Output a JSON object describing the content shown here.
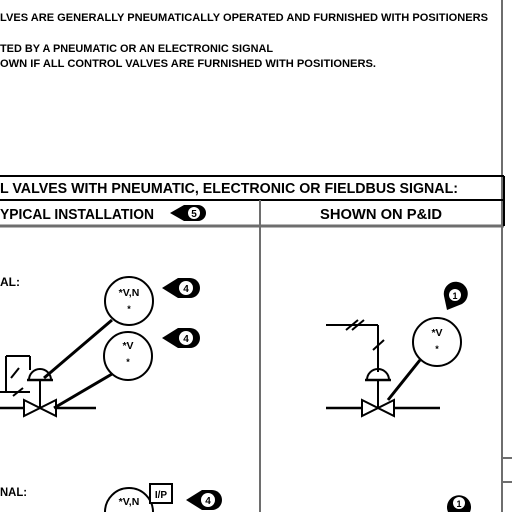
{
  "notes": {
    "line1": "LVES ARE GENERALLY PNEUMATICALLY OPERATED AND FURNISHED WITH POSITIONERS",
    "line2": "TED BY A PNEUMATIC OR AN ELECTRONIC SIGNAL",
    "line3": "OWN IF ALL CONTROL VALVES ARE FURNISHED WITH POSITIONERS."
  },
  "table": {
    "title": "L VALVES WITH PNEUMATIC, ELECTRONIC OR FIELDBUS SIGNAL:",
    "col_left": "YPICAL INSTALLATION",
    "col_left_callout": "5",
    "col_right": "SHOWN ON P&ID"
  },
  "left": {
    "row1_label": "AL:",
    "row2_label": "NAL:",
    "bubble1": "*V,N",
    "bubble1_sub": "*",
    "bubble1_callout": "4",
    "bubble2": "*V",
    "bubble2_sub": "*",
    "bubble2_callout": "4",
    "bubble3": "*V,N",
    "ip_label": "I/P",
    "bubble3_callout": "4"
  },
  "right": {
    "bubble1": "*V",
    "bubble1_sub": "*",
    "tag1": "1",
    "tag2": "1"
  }
}
